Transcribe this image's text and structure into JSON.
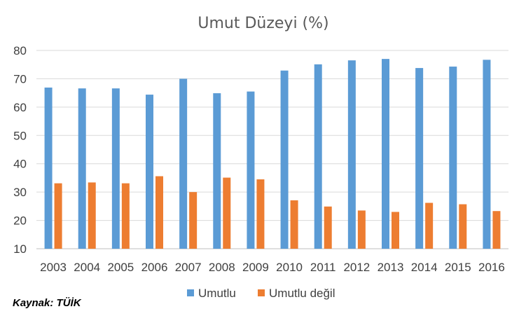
{
  "chart_data": {
    "type": "bar",
    "title": "Umut Düzeyi (%)",
    "categories": [
      "2003",
      "2004",
      "2005",
      "2006",
      "2007",
      "2008",
      "2009",
      "2010",
      "2011",
      "2012",
      "2013",
      "2014",
      "2015",
      "2016"
    ],
    "series": [
      {
        "name": "Umutlu",
        "color": "#5B9BD5",
        "values": [
          66.9,
          66.6,
          66.6,
          64.4,
          70.0,
          64.9,
          65.5,
          72.9,
          75.1,
          76.5,
          77.0,
          73.8,
          74.3,
          76.7
        ]
      },
      {
        "name": "Umutlu değil",
        "color": "#ED7D31",
        "values": [
          33.1,
          33.4,
          33.1,
          35.6,
          30.0,
          35.1,
          34.5,
          27.1,
          24.9,
          23.5,
          23.0,
          26.2,
          25.7,
          23.3
        ]
      }
    ],
    "ylim": [
      10,
      80
    ],
    "yticks": [
      10,
      20,
      30,
      40,
      50,
      60,
      70,
      80
    ],
    "grid": true,
    "legend_position": "bottom",
    "xlabel": "",
    "ylabel": ""
  },
  "source": "Kaynak: TÜİK"
}
